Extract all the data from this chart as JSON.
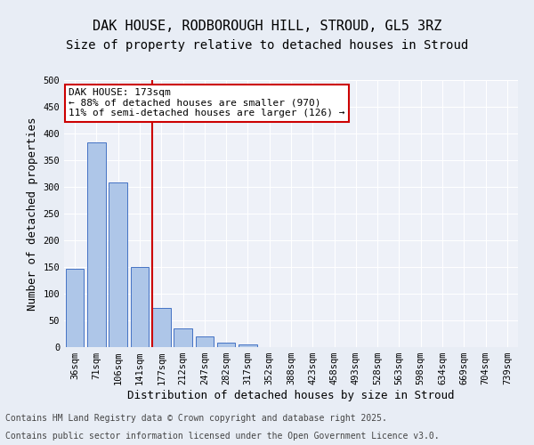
{
  "title_line1": "DAK HOUSE, RODBOROUGH HILL, STROUD, GL5 3RZ",
  "title_line2": "Size of property relative to detached houses in Stroud",
  "xlabel": "Distribution of detached houses by size in Stroud",
  "ylabel": "Number of detached properties",
  "categories": [
    "36sqm",
    "71sqm",
    "106sqm",
    "141sqm",
    "177sqm",
    "212sqm",
    "247sqm",
    "282sqm",
    "317sqm",
    "352sqm",
    "388sqm",
    "423sqm",
    "458sqm",
    "493sqm",
    "528sqm",
    "563sqm",
    "598sqm",
    "634sqm",
    "669sqm",
    "704sqm",
    "739sqm"
  ],
  "bar_values": [
    146,
    383,
    308,
    150,
    73,
    35,
    20,
    8,
    5,
    0,
    0,
    0,
    0,
    0,
    0,
    0,
    0,
    0,
    0,
    0,
    0
  ],
  "bar_color": "#aec6e8",
  "bar_edge_color": "#4472c4",
  "vline_x": 3.57,
  "vline_color": "#cc0000",
  "annotation_title": "DAK HOUSE: 173sqm",
  "annotation_line1": "← 88% of detached houses are smaller (970)",
  "annotation_line2": "11% of semi-detached houses are larger (126) →",
  "annotation_box_color": "#cc0000",
  "ylim": [
    0,
    500
  ],
  "yticks": [
    0,
    50,
    100,
    150,
    200,
    250,
    300,
    350,
    400,
    450,
    500
  ],
  "background_color": "#e8edf5",
  "plot_background": "#eef1f8",
  "footer_line1": "Contains HM Land Registry data © Crown copyright and database right 2025.",
  "footer_line2": "Contains public sector information licensed under the Open Government Licence v3.0.",
  "title_fontsize": 11,
  "subtitle_fontsize": 10,
  "axis_label_fontsize": 9,
  "tick_fontsize": 7.5,
  "annotation_fontsize": 8,
  "footer_fontsize": 7
}
